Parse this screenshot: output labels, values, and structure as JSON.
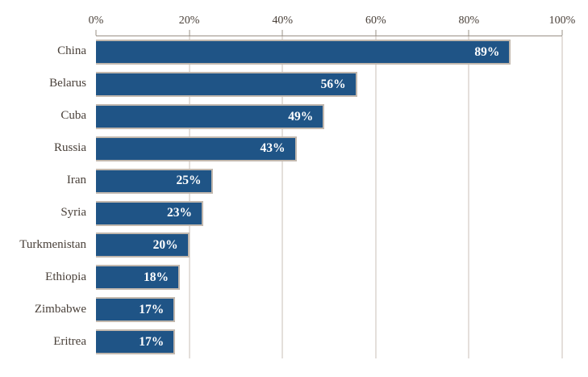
{
  "chart_data": {
    "type": "bar",
    "orientation": "horizontal",
    "title": "",
    "xlabel": "",
    "ylabel": "",
    "categories": [
      "China",
      "Belarus",
      "Cuba",
      "Russia",
      "Iran",
      "Syria",
      "Turkmenistan",
      "Ethiopia",
      "Zimbabwe",
      "Eritrea"
    ],
    "values": [
      89,
      56,
      49,
      43,
      25,
      23,
      20,
      18,
      17,
      17
    ],
    "value_labels": [
      "89%",
      "56%",
      "49%",
      "43%",
      "25%",
      "23%",
      "20%",
      "18%",
      "17%",
      "17%"
    ],
    "xlim": [
      0,
      100
    ],
    "x_ticks": [
      {
        "value": 0,
        "label": "0%"
      },
      {
        "value": 20,
        "label": "20%"
      },
      {
        "value": 40,
        "label": "40%"
      },
      {
        "value": 60,
        "label": "60%"
      },
      {
        "value": 80,
        "label": "80%"
      },
      {
        "value": 100,
        "label": "100%"
      }
    ],
    "axis_position": "top",
    "grid": true,
    "legend": "none",
    "colors": {
      "bar_fill": "#1F5486",
      "bar_border": "#C2B8AE",
      "gridline": "#C9BFB7",
      "axis_line": "#9A9086",
      "tick_label": "#494039",
      "category_label": "#494039",
      "value_label": "#FFFFFF",
      "background": "#FFFFFF"
    }
  }
}
